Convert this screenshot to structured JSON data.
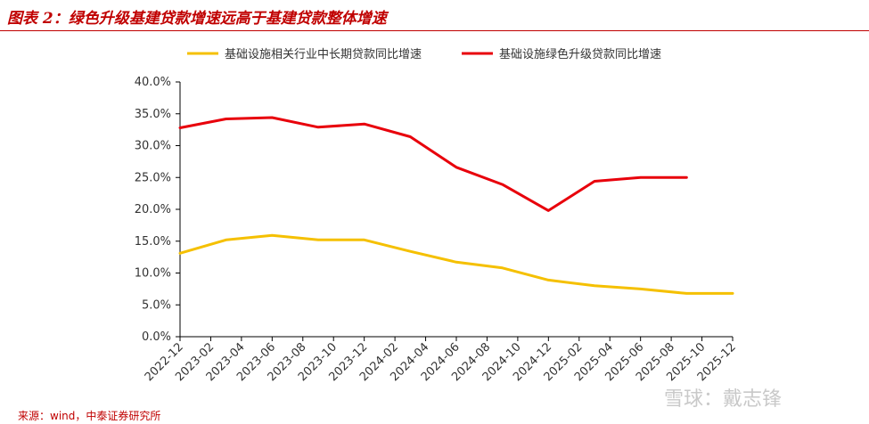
{
  "header": {
    "title": "图表 2：绿色升级基建贷款增速远高于基建贷款整体增速"
  },
  "footer": {
    "source": "来源：wind，中泰证券研究所"
  },
  "watermark": {
    "text": "雪球：戴志锋"
  },
  "chart_data": {
    "type": "line",
    "x": [
      "2022-12",
      "2023-02",
      "2023-04",
      "2023-06",
      "2023-08",
      "2023-10",
      "2023-12",
      "2024-02",
      "2024-04",
      "2024-06",
      "2024-08",
      "2024-10",
      "2024-12",
      "2025-02",
      "2025-04",
      "2025-06",
      "2025-08",
      "2025-10",
      "2025-12"
    ],
    "ylim": [
      0,
      40
    ],
    "yticks": [
      "0.0%",
      "5.0%",
      "10.0%",
      "15.0%",
      "20.0%",
      "25.0%",
      "30.0%",
      "35.0%",
      "40.0%"
    ],
    "legend_position": "top",
    "grid": false,
    "series": [
      {
        "name": "基础设施相关行业中长期贷款同比增速",
        "color": "#f5c000",
        "points": [
          [
            "2022-12",
            13.1
          ],
          [
            "2023-03",
            15.2
          ],
          [
            "2023-06",
            15.9
          ],
          [
            "2023-09",
            15.2
          ],
          [
            "2023-12",
            15.2
          ],
          [
            "2024-03",
            13.4
          ],
          [
            "2024-06",
            11.7
          ],
          [
            "2024-09",
            10.8
          ],
          [
            "2024-12",
            8.9
          ],
          [
            "2025-03",
            8.0
          ],
          [
            "2025-06",
            7.5
          ],
          [
            "2025-09",
            6.8
          ],
          [
            "2025-12",
            6.8
          ]
        ]
      },
      {
        "name": "基础设施绿色升级贷款同比增速",
        "color": "#e8000b",
        "points": [
          [
            "2022-12",
            32.8
          ],
          [
            "2023-03",
            34.2
          ],
          [
            "2023-06",
            34.4
          ],
          [
            "2023-09",
            32.9
          ],
          [
            "2023-12",
            33.4
          ],
          [
            "2024-03",
            31.4
          ],
          [
            "2024-06",
            26.6
          ],
          [
            "2024-09",
            23.9
          ],
          [
            "2024-12",
            19.8
          ],
          [
            "2025-03",
            24.4
          ],
          [
            "2025-06",
            25.0
          ],
          [
            "2025-09",
            25.0
          ]
        ]
      }
    ]
  }
}
